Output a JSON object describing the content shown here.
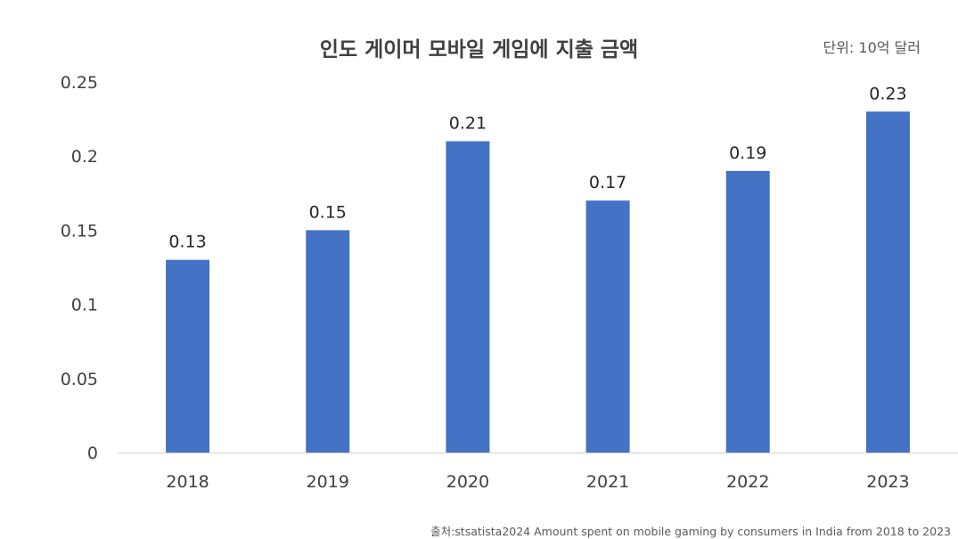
{
  "chart_data": {
    "type": "bar",
    "title": "인도 게이머 모바일 게임에 지출 금액",
    "unit_label": "단위: 10억 달러",
    "source": "출처:stsatista2024 Amount spent on mobile gaming by consumers in India from 2018 to 2023",
    "categories": [
      "2018",
      "2019",
      "2020",
      "2021",
      "2022",
      "2023"
    ],
    "values": [
      0.13,
      0.15,
      0.21,
      0.17,
      0.19,
      0.23
    ],
    "data_labels": [
      "0.13",
      "0.15",
      "0.21",
      "0.17",
      "0.19",
      "0.23"
    ],
    "yticks": [
      "0",
      "0.05",
      "0.1",
      "0.15",
      "0.2",
      "0.25"
    ],
    "ylim": [
      0,
      0.25
    ],
    "xlabel": "",
    "ylabel": "",
    "grid": false,
    "legend": "none",
    "bar_color": "#4472C4"
  }
}
